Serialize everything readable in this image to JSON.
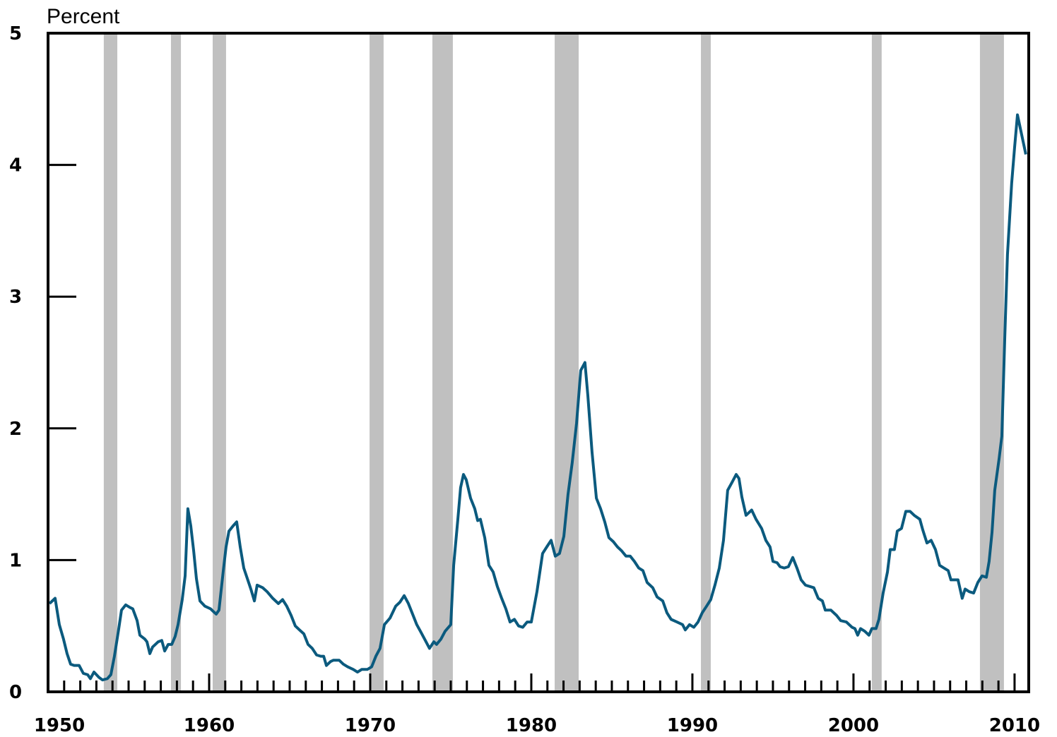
{
  "chart_data": {
    "type": "line",
    "ylabel": "Percent",
    "xlim": [
      1950,
      2010.88
    ],
    "ylim": [
      0,
      5
    ],
    "xticks": [
      1950,
      1960,
      1970,
      1980,
      1990,
      2000,
      2010
    ],
    "xminorticks": [
      1951,
      1952,
      1953,
      1954,
      1955,
      1956,
      1957,
      1958,
      1959,
      1961,
      1962,
      1963,
      1964,
      1965,
      1966,
      1967,
      1968,
      1969,
      1971,
      1972,
      1973,
      1974,
      1975,
      1976,
      1977,
      1978,
      1979,
      1981,
      1982,
      1983,
      1984,
      1985,
      1986,
      1987,
      1988,
      1989,
      1991,
      1992,
      1993,
      1994,
      1995,
      1996,
      1997,
      1998,
      1999,
      2001,
      2002,
      2003,
      2004,
      2005,
      2006,
      2007,
      2008,
      2009
    ],
    "yticks": [
      0,
      1,
      2,
      3,
      4,
      5
    ],
    "shaded_color": "#c0c0c0",
    "shaded_periods": [
      [
        1953.46,
        1954.3
      ],
      [
        1957.63,
        1958.25
      ],
      [
        1960.22,
        1961.05
      ],
      [
        1969.96,
        1970.83
      ],
      [
        1973.86,
        1975.13
      ],
      [
        1981.45,
        1982.94
      ],
      [
        1990.53,
        1991.14
      ],
      [
        2001.14,
        2001.75
      ],
      [
        2007.85,
        2009.34
      ]
    ],
    "series": [
      {
        "color": "#0b5a7e",
        "x": [
          1950.09,
          1950.44,
          1950.7,
          1950.96,
          1951.18,
          1951.4,
          1951.62,
          1951.93,
          1952.19,
          1952.46,
          1952.63,
          1952.85,
          1953.16,
          1953.38,
          1953.68,
          1953.9,
          1954.12,
          1954.39,
          1954.56,
          1954.82,
          1955.09,
          1955.26,
          1955.53,
          1955.7,
          1956.01,
          1956.14,
          1956.32,
          1956.49,
          1956.84,
          1957.06,
          1957.24,
          1957.46,
          1957.68,
          1957.89,
          1958.07,
          1958.33,
          1958.51,
          1958.68,
          1958.86,
          1959.04,
          1959.21,
          1959.43,
          1959.74,
          1960.09,
          1960.26,
          1960.44,
          1960.61,
          1960.88,
          1961.05,
          1961.23,
          1961.49,
          1961.71,
          1961.93,
          1962.15,
          1962.37,
          1962.59,
          1962.81,
          1962.98,
          1963.33,
          1963.6,
          1963.95,
          1964.3,
          1964.56,
          1964.82,
          1965.09,
          1965.35,
          1965.61,
          1965.88,
          1966.14,
          1966.4,
          1966.67,
          1966.93,
          1967.11,
          1967.28,
          1967.54,
          1967.72,
          1968.07,
          1968.33,
          1968.6,
          1968.95,
          1969.21,
          1969.47,
          1969.82,
          1970.09,
          1970.35,
          1970.61,
          1970.88,
          1971.23,
          1971.58,
          1971.84,
          1972.11,
          1972.37,
          1972.63,
          1972.89,
          1973.16,
          1973.42,
          1973.68,
          1973.95,
          1974.12,
          1974.39,
          1974.65,
          1975.0,
          1975.18,
          1975.44,
          1975.61,
          1975.79,
          1975.96,
          1976.23,
          1976.49,
          1976.67,
          1976.84,
          1977.11,
          1977.37,
          1977.63,
          1977.89,
          1978.16,
          1978.42,
          1978.68,
          1978.95,
          1979.21,
          1979.47,
          1979.74,
          1980.0,
          1980.35,
          1980.7,
          1980.96,
          1981.23,
          1981.49,
          1981.75,
          1982.02,
          1982.28,
          1982.54,
          1982.81,
          1983.07,
          1983.33,
          1983.51,
          1983.77,
          1984.04,
          1984.3,
          1984.56,
          1984.82,
          1985.09,
          1985.35,
          1985.61,
          1985.88,
          1986.14,
          1986.4,
          1986.67,
          1986.93,
          1987.19,
          1987.54,
          1987.81,
          1988.16,
          1988.42,
          1988.68,
          1989.04,
          1989.39,
          1989.56,
          1989.82,
          1990.09,
          1990.35,
          1990.61,
          1990.88,
          1991.14,
          1991.4,
          1991.67,
          1991.93,
          1992.19,
          1992.46,
          1992.72,
          1992.89,
          1993.07,
          1993.33,
          1993.68,
          1993.95,
          1994.3,
          1994.56,
          1994.82,
          1995.0,
          1995.26,
          1995.44,
          1995.7,
          1995.96,
          1996.23,
          1996.49,
          1996.75,
          1997.02,
          1997.28,
          1997.54,
          1997.81,
          1998.07,
          1998.25,
          1998.6,
          1998.95,
          1999.21,
          1999.56,
          1999.91,
          2000.09,
          2000.26,
          2000.44,
          2000.7,
          2000.96,
          2001.14,
          2001.4,
          2001.58,
          2001.84,
          2002.11,
          2002.28,
          2002.54,
          2002.72,
          2002.98,
          2003.25,
          2003.51,
          2003.77,
          2004.12,
          2004.3,
          2004.56,
          2004.82,
          2005.09,
          2005.35,
          2005.61,
          2005.88,
          2006.05,
          2006.49,
          2006.75,
          2006.93,
          2007.19,
          2007.46,
          2007.72,
          2007.98,
          2008.25,
          2008.42,
          2008.6,
          2008.77,
          2009.04,
          2009.21,
          2009.39,
          2009.56,
          2009.82,
          2010.0,
          2010.18,
          2010.44,
          2010.7
        ],
        "values": [
          0.67,
          0.71,
          0.51,
          0.4,
          0.29,
          0.21,
          0.2,
          0.2,
          0.14,
          0.13,
          0.1,
          0.15,
          0.11,
          0.09,
          0.1,
          0.13,
          0.27,
          0.48,
          0.62,
          0.66,
          0.64,
          0.63,
          0.54,
          0.43,
          0.4,
          0.38,
          0.29,
          0.34,
          0.38,
          0.39,
          0.31,
          0.36,
          0.36,
          0.42,
          0.51,
          0.7,
          0.88,
          1.39,
          1.26,
          1.07,
          0.86,
          0.69,
          0.65,
          0.63,
          0.61,
          0.59,
          0.62,
          0.92,
          1.1,
          1.22,
          1.26,
          1.29,
          1.1,
          0.94,
          0.86,
          0.78,
          0.69,
          0.81,
          0.79,
          0.76,
          0.71,
          0.67,
          0.7,
          0.65,
          0.58,
          0.5,
          0.47,
          0.44,
          0.36,
          0.33,
          0.28,
          0.27,
          0.27,
          0.2,
          0.23,
          0.24,
          0.24,
          0.21,
          0.19,
          0.17,
          0.15,
          0.17,
          0.17,
          0.19,
          0.27,
          0.33,
          0.51,
          0.56,
          0.65,
          0.68,
          0.73,
          0.67,
          0.59,
          0.51,
          0.45,
          0.39,
          0.33,
          0.38,
          0.36,
          0.4,
          0.46,
          0.51,
          0.96,
          1.31,
          1.55,
          1.65,
          1.61,
          1.47,
          1.39,
          1.3,
          1.31,
          1.17,
          0.96,
          0.91,
          0.8,
          0.71,
          0.63,
          0.53,
          0.55,
          0.5,
          0.49,
          0.53,
          0.53,
          0.76,
          1.05,
          1.1,
          1.15,
          1.03,
          1.05,
          1.18,
          1.5,
          1.74,
          2.04,
          2.44,
          2.5,
          2.25,
          1.82,
          1.47,
          1.39,
          1.29,
          1.17,
          1.14,
          1.1,
          1.07,
          1.03,
          1.03,
          0.99,
          0.94,
          0.92,
          0.83,
          0.79,
          0.72,
          0.69,
          0.6,
          0.55,
          0.53,
          0.51,
          0.47,
          0.51,
          0.49,
          0.53,
          0.6,
          0.65,
          0.7,
          0.81,
          0.94,
          1.15,
          1.53,
          1.59,
          1.65,
          1.62,
          1.48,
          1.34,
          1.38,
          1.31,
          1.24,
          1.15,
          1.1,
          0.99,
          0.98,
          0.95,
          0.94,
          0.95,
          1.02,
          0.94,
          0.85,
          0.81,
          0.8,
          0.79,
          0.71,
          0.69,
          0.62,
          0.62,
          0.58,
          0.54,
          0.53,
          0.49,
          0.48,
          0.43,
          0.48,
          0.46,
          0.43,
          0.48,
          0.48,
          0.55,
          0.75,
          0.91,
          1.08,
          1.08,
          1.22,
          1.24,
          1.37,
          1.37,
          1.34,
          1.31,
          1.23,
          1.13,
          1.15,
          1.08,
          0.96,
          0.94,
          0.92,
          0.85,
          0.85,
          0.71,
          0.78,
          0.76,
          0.75,
          0.83,
          0.88,
          0.87,
          0.99,
          1.21,
          1.53,
          1.77,
          1.94,
          2.68,
          3.32,
          3.86,
          4.13,
          4.38,
          4.23,
          4.08
        ]
      }
    ]
  }
}
